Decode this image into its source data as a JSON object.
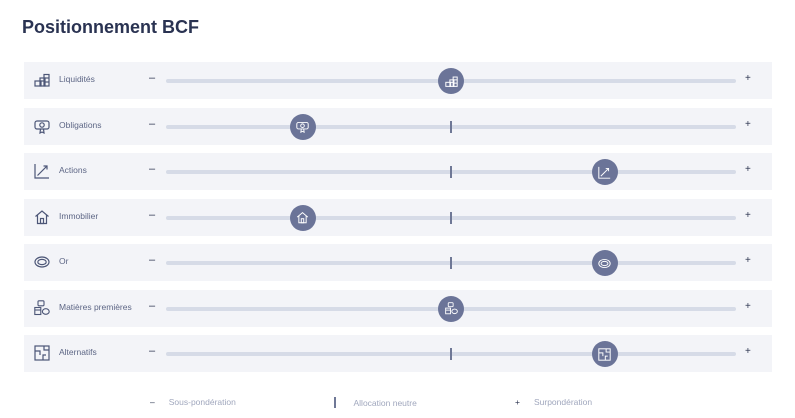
{
  "page": {
    "title": "Positionnement BCF"
  },
  "scale": {
    "minus": "–",
    "plus": "+"
  },
  "rows": [
    {
      "label": "Liquidités",
      "icon": "coins-stack-icon",
      "position_pct": 50,
      "show_neutral": false
    },
    {
      "label": "Obligations",
      "icon": "bond-certificate-icon",
      "position_pct": 24,
      "show_neutral": true
    },
    {
      "label": "Actions",
      "icon": "trend-up-icon",
      "position_pct": 77,
      "show_neutral": true
    },
    {
      "label": "Immobilier",
      "icon": "house-icon",
      "position_pct": 24,
      "show_neutral": true
    },
    {
      "label": "Or",
      "icon": "gold-ring-icon",
      "position_pct": 77,
      "show_neutral": true
    },
    {
      "label": "Matières premières",
      "icon": "commodities-icon",
      "position_pct": 50,
      "show_neutral": false
    },
    {
      "label": "Alternatifs",
      "icon": "alternatives-icon",
      "position_pct": 77,
      "show_neutral": true
    }
  ],
  "legend": {
    "under_symbol": "–",
    "under_label": "Sous-pondération",
    "neutral_label": "Allocation neutre",
    "over_symbol": "+",
    "over_label": "Surpondération"
  }
}
